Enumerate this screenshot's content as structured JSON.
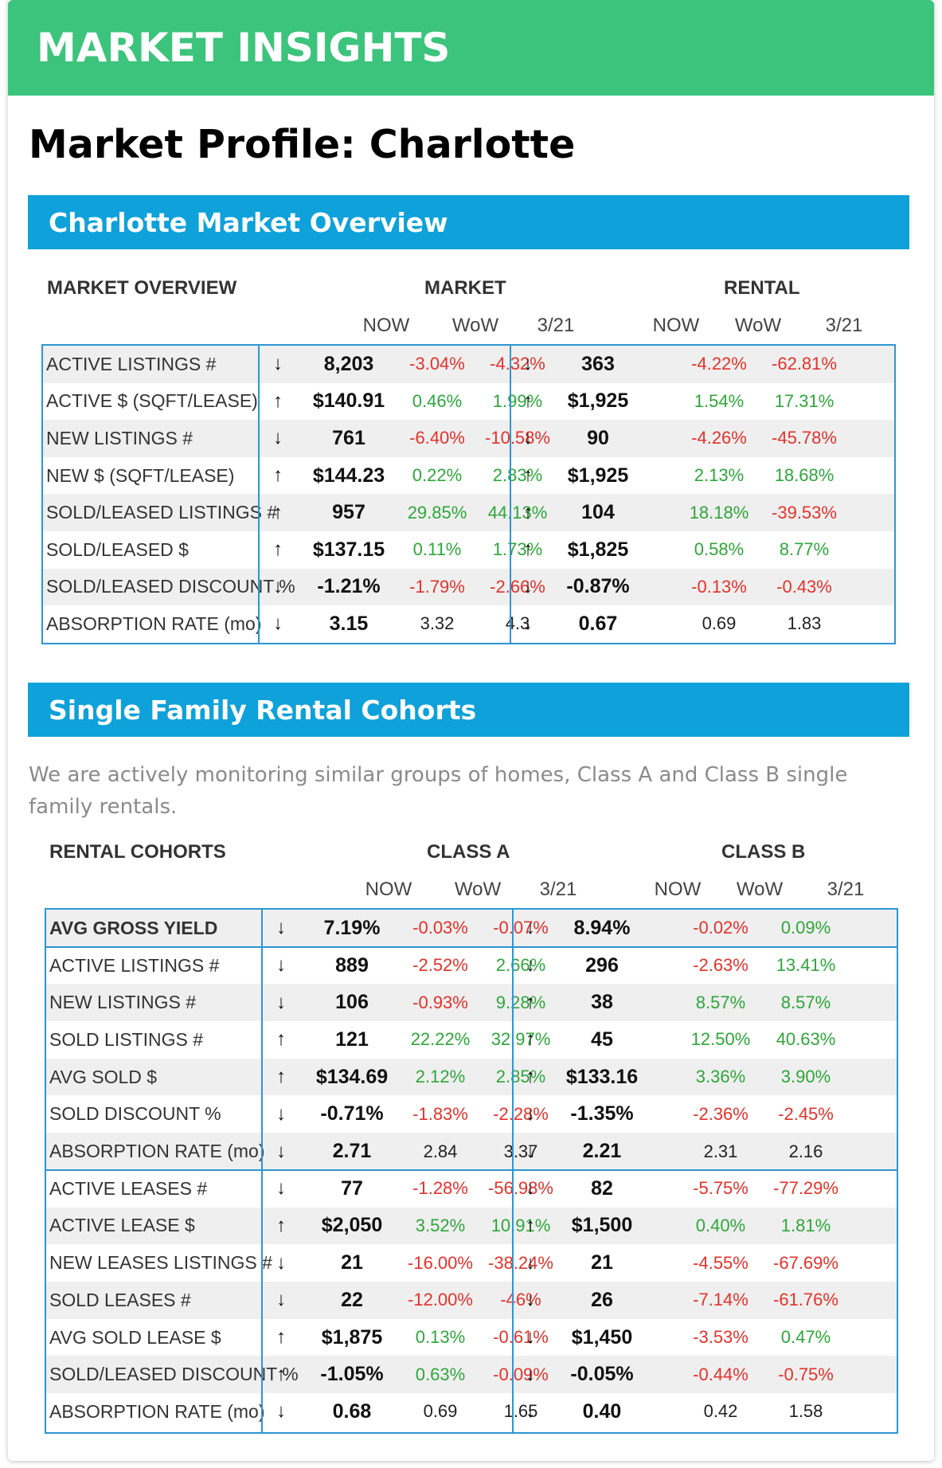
{
  "banner": {
    "title": "MARKET INSIGHTS"
  },
  "page_title": "Market Profile: Charlotte",
  "section1": {
    "title": "Charlotte Market Overview",
    "row_header": "MARKET OVERVIEW",
    "group_a": "MARKET",
    "group_b": "RENTAL",
    "sub": [
      "NOW",
      "WoW",
      "3/21"
    ],
    "rows": [
      {
        "label": "ACTIVE LISTINGS #",
        "a": {
          "dir": "↓",
          "now": "8,203",
          "wow": "-3.04%",
          "m": "-4.32%"
        },
        "b": {
          "dir": "↓",
          "now": "363",
          "wow": "-4.22%",
          "m": "-62.81%"
        }
      },
      {
        "label": "ACTIVE $ (SQFT/LEASE)",
        "a": {
          "dir": "↑",
          "now": "$140.91",
          "wow": "0.46%",
          "m": "1.99%"
        },
        "b": {
          "dir": "↑",
          "now": "$1,925",
          "wow": "1.54%",
          "m": "17.31%"
        }
      },
      {
        "label": "NEW LISTINGS #",
        "a": {
          "dir": "↓",
          "now": "761",
          "wow": "-6.40%",
          "m": "-10.58%"
        },
        "b": {
          "dir": "↓",
          "now": "90",
          "wow": "-4.26%",
          "m": "-45.78%"
        }
      },
      {
        "label": "NEW $ (SQFT/LEASE)",
        "a": {
          "dir": "↑",
          "now": "$144.23",
          "wow": "0.22%",
          "m": "2.83%"
        },
        "b": {
          "dir": "↑",
          "now": "$1,925",
          "wow": "2.13%",
          "m": "18.68%"
        }
      },
      {
        "label": "SOLD/LEASED LISTINGS #",
        "a": {
          "dir": "↑",
          "now": "957",
          "wow": "29.85%",
          "m": "44.13%"
        },
        "b": {
          "dir": "↑",
          "now": "104",
          "wow": "18.18%",
          "m": "-39.53%"
        }
      },
      {
        "label": "SOLD/LEASED $",
        "a": {
          "dir": "↑",
          "now": "$137.15",
          "wow": "0.11%",
          "m": "1.73%"
        },
        "b": {
          "dir": "↑",
          "now": "$1,825",
          "wow": "0.58%",
          "m": "8.77%"
        }
      },
      {
        "label": "SOLD/LEASED DISCOUNT %",
        "a": {
          "dir": "↓",
          "now": "-1.21%",
          "wow": "-1.79%",
          "m": "-2.66%"
        },
        "b": {
          "dir": "↓",
          "now": "-0.87%",
          "wow": "-0.13%",
          "m": "-0.43%"
        }
      },
      {
        "label": "ABSORPTION RATE (mo)",
        "a": {
          "dir": "↓",
          "now": "3.15",
          "wow": "3.32",
          "m": "4.3"
        },
        "b": {
          "dir": "↓",
          "now": "0.67",
          "wow": "0.69",
          "m": "1.83"
        }
      }
    ]
  },
  "section2": {
    "title": "Single Family Rental Cohorts",
    "description": "We are actively monitoring similar groups of homes, Class A and Class B single family rentals.",
    "row_header": "RENTAL COHORTS",
    "group_a": "CLASS A",
    "group_b": "CLASS B",
    "sub": [
      "NOW",
      "WoW",
      "3/21"
    ],
    "rows": [
      {
        "label": "AVG GROSS YIELD",
        "a": {
          "dir": "↓",
          "now": "7.19%",
          "wow": "-0.03%",
          "m": "-0.07%"
        },
        "b": {
          "dir": "↓",
          "now": "8.94%",
          "wow": "-0.02%",
          "m": "0.09%"
        }
      },
      {
        "label": "ACTIVE LISTINGS #",
        "a": {
          "dir": "↓",
          "now": "889",
          "wow": "-2.52%",
          "m": "2.66%"
        },
        "b": {
          "dir": "↓",
          "now": "296",
          "wow": "-2.63%",
          "m": "13.41%"
        }
      },
      {
        "label": "NEW LISTINGS #",
        "a": {
          "dir": "↓",
          "now": "106",
          "wow": "-0.93%",
          "m": "9.28%"
        },
        "b": {
          "dir": "↑",
          "now": "38",
          "wow": "8.57%",
          "m": "8.57%"
        }
      },
      {
        "label": "SOLD LISTINGS #",
        "a": {
          "dir": "↑",
          "now": "121",
          "wow": "22.22%",
          "m": "32.97%"
        },
        "b": {
          "dir": "↑",
          "now": "45",
          "wow": "12.50%",
          "m": "40.63%"
        }
      },
      {
        "label": "AVG SOLD $",
        "a": {
          "dir": "↑",
          "now": "$134.69",
          "wow": "2.12%",
          "m": "2.85%"
        },
        "b": {
          "dir": "↑",
          "now": "$133.16",
          "wow": "3.36%",
          "m": "3.90%"
        }
      },
      {
        "label": "SOLD DISCOUNT %",
        "a": {
          "dir": "↓",
          "now": "-0.71%",
          "wow": "-1.83%",
          "m": "-2.28%"
        },
        "b": {
          "dir": "↓",
          "now": "-1.35%",
          "wow": "-2.36%",
          "m": "-2.45%"
        }
      },
      {
        "label": "ABSORPTION RATE (mo)",
        "a": {
          "dir": "↓",
          "now": "2.71",
          "wow": "2.84",
          "m": "3.37"
        },
        "b": {
          "dir": "↓",
          "now": "2.21",
          "wow": "2.31",
          "m": "2.16"
        }
      },
      {
        "label": "ACTIVE LEASES #",
        "a": {
          "dir": "↓",
          "now": "77",
          "wow": "-1.28%",
          "m": "-56.98%"
        },
        "b": {
          "dir": "↓",
          "now": "82",
          "wow": "-5.75%",
          "m": "-77.29%"
        }
      },
      {
        "label": "ACTIVE LEASE $",
        "a": {
          "dir": "↑",
          "now": "$2,050",
          "wow": "3.52%",
          "m": "10.91%"
        },
        "b": {
          "dir": "↑",
          "now": "$1,500",
          "wow": "0.40%",
          "m": "1.81%"
        }
      },
      {
        "label": "NEW LEASES LISTINGS #",
        "a": {
          "dir": "↓",
          "now": "21",
          "wow": "-16.00%",
          "m": "-38.24%"
        },
        "b": {
          "dir": "↓",
          "now": "21",
          "wow": "-4.55%",
          "m": "-67.69%"
        }
      },
      {
        "label": "SOLD LEASES #",
        "a": {
          "dir": "↓",
          "now": "22",
          "wow": "-12.00%",
          "m": "-46%"
        },
        "b": {
          "dir": "↓",
          "now": "26",
          "wow": "-7.14%",
          "m": "-61.76%"
        }
      },
      {
        "label": "AVG SOLD LEASE $",
        "a": {
          "dir": "↑",
          "now": "$1,875",
          "wow": "0.13%",
          "m": "-0.61%"
        },
        "b": {
          "dir": "↓",
          "now": "$1,450",
          "wow": "-3.53%",
          "m": "0.47%"
        }
      },
      {
        "label": "SOLD/LEASED DISCOUNT %",
        "a": {
          "dir": "↑",
          "now": "-1.05%",
          "wow": "0.63%",
          "m": "-0.09%"
        },
        "b": {
          "dir": "↓",
          "now": "-0.05%",
          "wow": "-0.44%",
          "m": "-0.75%"
        }
      },
      {
        "label": "ABSORPTION RATE (mo)",
        "a": {
          "dir": "↓",
          "now": "0.68",
          "wow": "0.69",
          "m": "1.65"
        },
        "b": {
          "dir": "↓",
          "now": "0.40",
          "wow": "0.42",
          "m": "1.58"
        }
      }
    ]
  },
  "colors": {
    "banner": "#3cc47c",
    "section_bar": "#0fa1d9",
    "border": "#2c96d3",
    "positive": "#2ea63a",
    "negative": "#e2322b"
  }
}
